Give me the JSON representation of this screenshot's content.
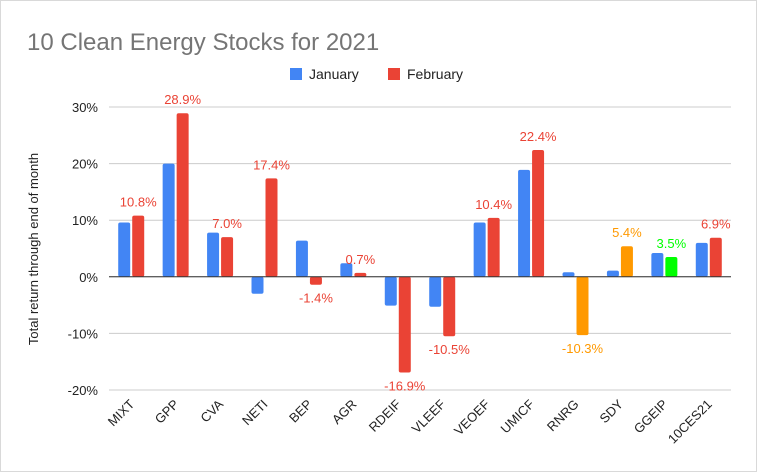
{
  "chart_data": {
    "type": "bar",
    "title": "10 Clean Energy Stocks for 2021",
    "xlabel": "",
    "ylabel": "Total return through end of month",
    "ylim": [
      -20,
      30
    ],
    "yticks": [
      "30%",
      "20%",
      "10%",
      "0%",
      "-10%",
      "-20%"
    ],
    "ytick_values": [
      30,
      20,
      10,
      0,
      -10,
      -20
    ],
    "grid": true,
    "legend_position": "top",
    "categories": [
      "MIXT",
      "GPP",
      "CVA",
      "NETI",
      "BEP",
      "AGR",
      "RDEIF",
      "VLEEF",
      "VEOEF",
      "UMICF",
      "RNRG",
      "SDY",
      "GGEIP",
      "10CES21"
    ],
    "series": [
      {
        "name": "January",
        "color": "#4285f4",
        "values": [
          9.6,
          20.0,
          7.8,
          -3.0,
          6.4,
          2.4,
          -5.1,
          -5.3,
          9.6,
          18.9,
          0.8,
          1.1,
          4.2,
          6.0
        ],
        "labels": []
      },
      {
        "name": "February",
        "color": "#ea4335",
        "values": [
          10.8,
          28.9,
          7.0,
          17.4,
          -1.4,
          0.7,
          -16.9,
          -10.5,
          10.4,
          22.4,
          -10.3,
          5.4,
          3.5,
          6.9
        ],
        "labels": [
          "10.8%",
          "28.9%",
          "7.0%",
          "17.4%",
          "-1.4%",
          "0.7%",
          "-16.9%",
          "-10.5%",
          "10.4%",
          "22.4%",
          "-10.3%",
          "5.4%",
          "3.5%",
          "6.9%"
        ],
        "point_colors": [
          "#ea4335",
          "#ea4335",
          "#ea4335",
          "#ea4335",
          "#ea4335",
          "#ea4335",
          "#ea4335",
          "#ea4335",
          "#ea4335",
          "#ea4335",
          "#ff9900",
          "#ff9900",
          "#00ff00",
          "#ea4335"
        ]
      }
    ]
  }
}
